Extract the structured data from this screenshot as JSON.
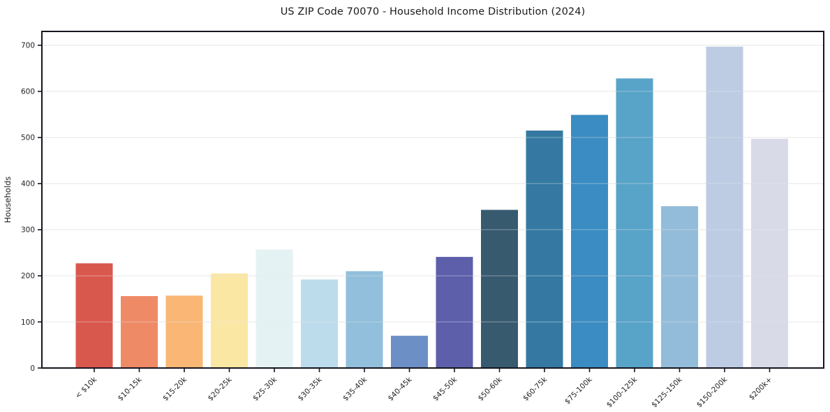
{
  "header": {
    "title": "US ZIP Code 70070 - Household Income Distribution (2024)"
  },
  "chart_data": {
    "type": "bar",
    "title": "US ZIP Code 70070 - Household Income Distribution (2024)",
    "xlabel": "",
    "ylabel": "Households",
    "categories": [
      "< $10k",
      "$10-15k",
      "$15-20k",
      "$20-25k",
      "$25-30k",
      "$30-35k",
      "$35-40k",
      "$40-45k",
      "$45-50k",
      "$50-60k",
      "$60-75k",
      "$75-100k",
      "$100-125k",
      "$125-150k",
      "$150-200k",
      "$200k+"
    ],
    "values": [
      227,
      156,
      157,
      205,
      257,
      192,
      210,
      70,
      241,
      343,
      515,
      549,
      628,
      351,
      697,
      497
    ],
    "bar_colors": [
      "#d9584e",
      "#ef8a67",
      "#f9b674",
      "#fbe7a4",
      "#e5f2f3",
      "#bcdcec",
      "#91bfdc",
      "#6c90c5",
      "#5d5fab",
      "#375a6f",
      "#3579a2",
      "#3a8cc2",
      "#58a3c8",
      "#93bcda",
      "#bdcce3",
      "#d8dae8"
    ],
    "yticks": [
      0,
      100,
      200,
      300,
      400,
      500,
      600,
      700
    ],
    "ytick_labels": [
      "0",
      "100",
      "200",
      "300",
      "400",
      "500",
      "600",
      "700"
    ],
    "ylim": [
      0,
      730
    ],
    "x_tick_rotation": 45,
    "grid": "horizontal",
    "legend": "none",
    "colors": {
      "background": "#ffffff",
      "spine": "#15151f",
      "gridline": "#e7e7e7",
      "tick_text": "#1f1f1f"
    }
  }
}
